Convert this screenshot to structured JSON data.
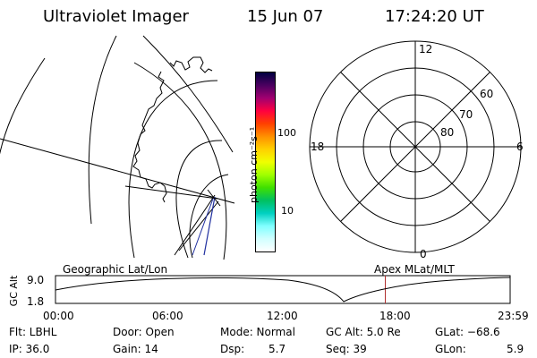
{
  "header": {
    "title": "Ultraviolet Imager",
    "date": "15 Jun 07",
    "time": "17:24:20 UT"
  },
  "colorbar": {
    "unit_label": "photon cm⁻²s⁻¹",
    "ticks": [
      "100",
      "10"
    ],
    "colors": [
      "#000040",
      "#4b0060",
      "#a00070",
      "#ff0040",
      "#ff4000",
      "#ff9000",
      "#ffd000",
      "#f0ff00",
      "#a0ff00",
      "#40e000",
      "#00c060",
      "#00d0c0",
      "#80ffff",
      "#d0ffff",
      "#ffffff"
    ]
  },
  "polar_plot": {
    "mlt_labels": {
      "top": "12",
      "left": "18",
      "right": "6",
      "bottom": "0"
    },
    "lat_labels": [
      "60",
      "70",
      "80"
    ]
  },
  "timeline": {
    "y_axis_label": "GC Alt",
    "y_ticks": [
      "9.0",
      "1.8"
    ],
    "left_caption": "Geographic Lat/Lon",
    "right_caption": "Apex MLat/MLT",
    "x_ticks": [
      "00:00",
      "06:00",
      "12:00",
      "18:00",
      "23:59"
    ],
    "marker_hour": 17.41,
    "marker_color": "#b03030"
  },
  "info": {
    "row1": [
      "Flt: LBHL",
      "Door: Open",
      "Mode: Normal",
      "GC Alt: 5.0 Re",
      "GLat: −68.6"
    ],
    "row2": [
      "IP: 36.0",
      "Gain: 14",
      "Dsp:",
      "5.7",
      "Seq: 39",
      "GLon:",
      "5.9"
    ]
  }
}
